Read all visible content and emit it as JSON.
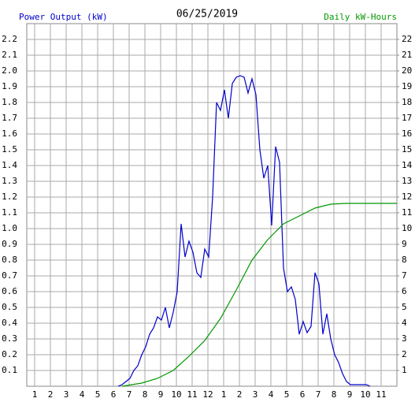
{
  "chart_data": {
    "type": "line",
    "title": "06/25/2019",
    "series": [
      {
        "name": "Power Output (kW)",
        "color": "#0000cc",
        "x": [
          6.3,
          6.55,
          6.8,
          7.05,
          7.3,
          7.55,
          7.8,
          8.05,
          8.3,
          8.55,
          8.8,
          9.05,
          9.3,
          9.55,
          9.8,
          10.05,
          10.3,
          10.55,
          10.8,
          11.05,
          11.3,
          11.55,
          11.8,
          12.05,
          12.3,
          12.55,
          12.8,
          13.05,
          13.3,
          13.55,
          13.8,
          14.05,
          14.3,
          14.55,
          14.8,
          15.05,
          15.3,
          15.55,
          15.8,
          16.05,
          16.3,
          16.55,
          16.8,
          17.05,
          17.3,
          17.55,
          17.8,
          18.05,
          18.3,
          18.55,
          18.8,
          19.05,
          19.3,
          19.55,
          19.8,
          20.05,
          20.3,
          20.55,
          20.8,
          21.05,
          21.3,
          21.55,
          21.8,
          22.05,
          22.3
        ],
        "values": [
          0,
          0.01,
          0.03,
          0.05,
          0.1,
          0.13,
          0.2,
          0.25,
          0.33,
          0.37,
          0.44,
          0.42,
          0.5,
          0.37,
          0.47,
          0.6,
          1.03,
          0.82,
          0.92,
          0.85,
          0.72,
          0.69,
          0.87,
          0.82,
          1.2,
          1.8,
          1.75,
          1.88,
          1.7,
          1.92,
          1.96,
          1.97,
          1.96,
          1.86,
          1.95,
          1.85,
          1.5,
          1.32,
          1.4,
          1.02,
          1.52,
          1.42,
          0.75,
          0.6,
          0.63,
          0.55,
          0.33,
          0.41,
          0.34,
          0.38,
          0.72,
          0.65,
          0.33,
          0.46,
          0.3,
          0.2,
          0.15,
          0.08,
          0.03,
          0.01,
          0.01,
          0.01,
          0.01,
          0.01,
          0
        ]
      },
      {
        "name": "Daily kW-Hours",
        "color": "#009900",
        "axis": "y2",
        "x": [
          6.55,
          7.8,
          8.8,
          9.8,
          10.8,
          11.8,
          12.8,
          13.8,
          14.8,
          15.8,
          16.8,
          17.8,
          18.8,
          19.8,
          20.8,
          24
        ],
        "values": [
          0,
          0.2,
          0.5,
          1.0,
          1.9,
          2.9,
          4.3,
          6.1,
          8.0,
          9.3,
          10.3,
          10.8,
          11.3,
          11.55,
          11.6,
          11.6
        ]
      }
    ],
    "xlim": [
      0.5,
      24
    ],
    "xticks": [
      1,
      2,
      3,
      4,
      5,
      6,
      7,
      8,
      9,
      10,
      11,
      12,
      {
        "value": 13,
        "label": "1"
      },
      {
        "value": 14,
        "label": "2"
      },
      {
        "value": 15,
        "label": "3"
      },
      {
        "value": 16,
        "label": "4"
      },
      {
        "value": 17,
        "label": "5"
      },
      {
        "value": 18,
        "label": "6"
      },
      {
        "value": 19,
        "label": "7"
      },
      {
        "value": 20,
        "label": "8"
      },
      {
        "value": 21,
        "label": "9"
      },
      {
        "value": 22,
        "label": "10"
      },
      {
        "value": 23,
        "label": "11"
      }
    ],
    "ylim": [
      0,
      2.3
    ],
    "yticks": [
      0.1,
      0.2,
      0.3,
      0.4,
      0.5,
      0.6,
      0.7,
      0.8,
      0.9,
      {
        "value": 1,
        "label": "1.0"
      },
      1.1,
      1.2,
      1.3,
      1.4,
      1.5,
      1.6,
      1.7,
      1.8,
      1.9,
      {
        "value": 2,
        "label": "2.0"
      },
      2.1,
      2.2
    ],
    "y2lim": [
      0,
      23
    ],
    "y2ticks": [
      1,
      2,
      3,
      4,
      5,
      6,
      7,
      8,
      9,
      10,
      11,
      12,
      13,
      14,
      15,
      16,
      17,
      18,
      19,
      20,
      21,
      22
    ],
    "grid": true
  }
}
